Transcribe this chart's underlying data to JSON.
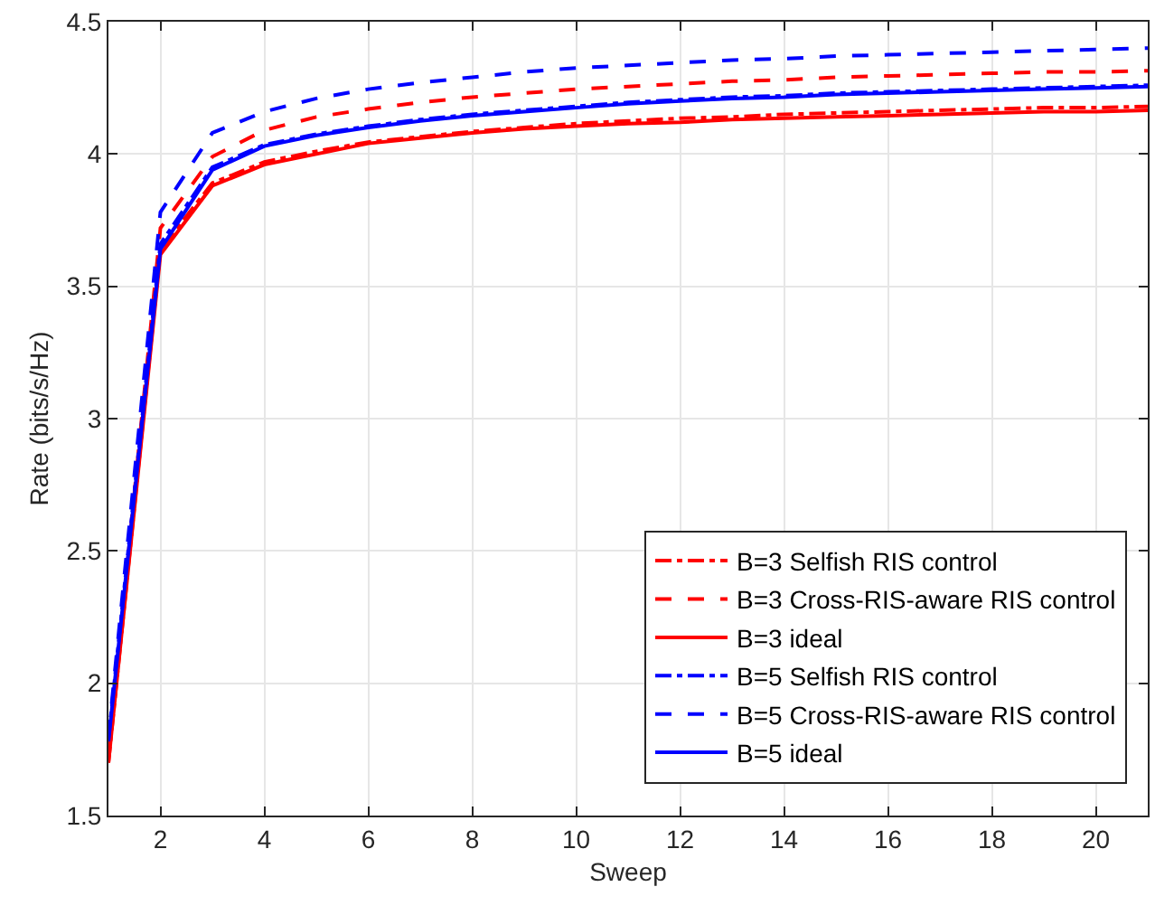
{
  "chart_data": {
    "type": "line",
    "xlabel": "Sweep",
    "ylabel": "Rate (bits/s/Hz)",
    "x": [
      1,
      2,
      3,
      4,
      5,
      6,
      7,
      8,
      9,
      10,
      11,
      12,
      13,
      14,
      15,
      16,
      17,
      18,
      19,
      20,
      21
    ],
    "xlim": [
      1,
      21
    ],
    "xticks": [
      2,
      4,
      6,
      8,
      10,
      12,
      14,
      16,
      18,
      20
    ],
    "ylim": [
      1.5,
      4.5
    ],
    "yticks": [
      1.5,
      2,
      2.5,
      3,
      3.5,
      4,
      4.5
    ],
    "grid": true,
    "legend": "bottom right",
    "marker": "none",
    "series": [
      {
        "name": "B=3 Selfish RIS control",
        "color": "#ff0000",
        "line_style": "dashdot",
        "values": [
          1.7,
          3.64,
          3.89,
          3.97,
          4.01,
          4.045,
          4.065,
          4.085,
          4.1,
          4.115,
          4.125,
          4.135,
          4.14,
          4.15,
          4.155,
          4.16,
          4.165,
          4.17,
          4.175,
          4.175,
          4.18
        ]
      },
      {
        "name": "B=3 Cross-RIS-aware RIS control",
        "color": "#ff0000",
        "line_style": "dashed",
        "values": [
          1.72,
          3.72,
          3.99,
          4.09,
          4.14,
          4.17,
          4.195,
          4.215,
          4.23,
          4.245,
          4.255,
          4.265,
          4.275,
          4.28,
          4.29,
          4.295,
          4.3,
          4.305,
          4.31,
          4.31,
          4.315
        ]
      },
      {
        "name": "B=3 ideal",
        "color": "#ff0000",
        "line_style": "solid",
        "values": [
          1.7,
          3.62,
          3.88,
          3.96,
          4.0,
          4.04,
          4.06,
          4.08,
          4.095,
          4.105,
          4.115,
          4.12,
          4.13,
          4.135,
          4.14,
          4.145,
          4.15,
          4.155,
          4.16,
          4.16,
          4.165
        ]
      },
      {
        "name": "B=5 Selfish RIS control",
        "color": "#0000ff",
        "line_style": "dashdot",
        "values": [
          1.79,
          3.66,
          3.95,
          4.035,
          4.075,
          4.105,
          4.13,
          4.15,
          4.165,
          4.18,
          4.195,
          4.205,
          4.215,
          4.22,
          4.23,
          4.235,
          4.24,
          4.245,
          4.25,
          4.255,
          4.26
        ]
      },
      {
        "name": "B=5 Cross-RIS-aware RIS control",
        "color": "#0000ff",
        "line_style": "dashed",
        "values": [
          1.8,
          3.78,
          4.08,
          4.16,
          4.21,
          4.245,
          4.27,
          4.29,
          4.31,
          4.325,
          4.335,
          4.345,
          4.355,
          4.36,
          4.37,
          4.375,
          4.38,
          4.385,
          4.39,
          4.395,
          4.4
        ]
      },
      {
        "name": "B=5 ideal",
        "color": "#0000ff",
        "line_style": "solid",
        "values": [
          1.78,
          3.64,
          3.94,
          4.03,
          4.07,
          4.1,
          4.125,
          4.145,
          4.16,
          4.175,
          4.19,
          4.2,
          4.21,
          4.215,
          4.225,
          4.23,
          4.235,
          4.24,
          4.245,
          4.25,
          4.255
        ]
      }
    ]
  }
}
